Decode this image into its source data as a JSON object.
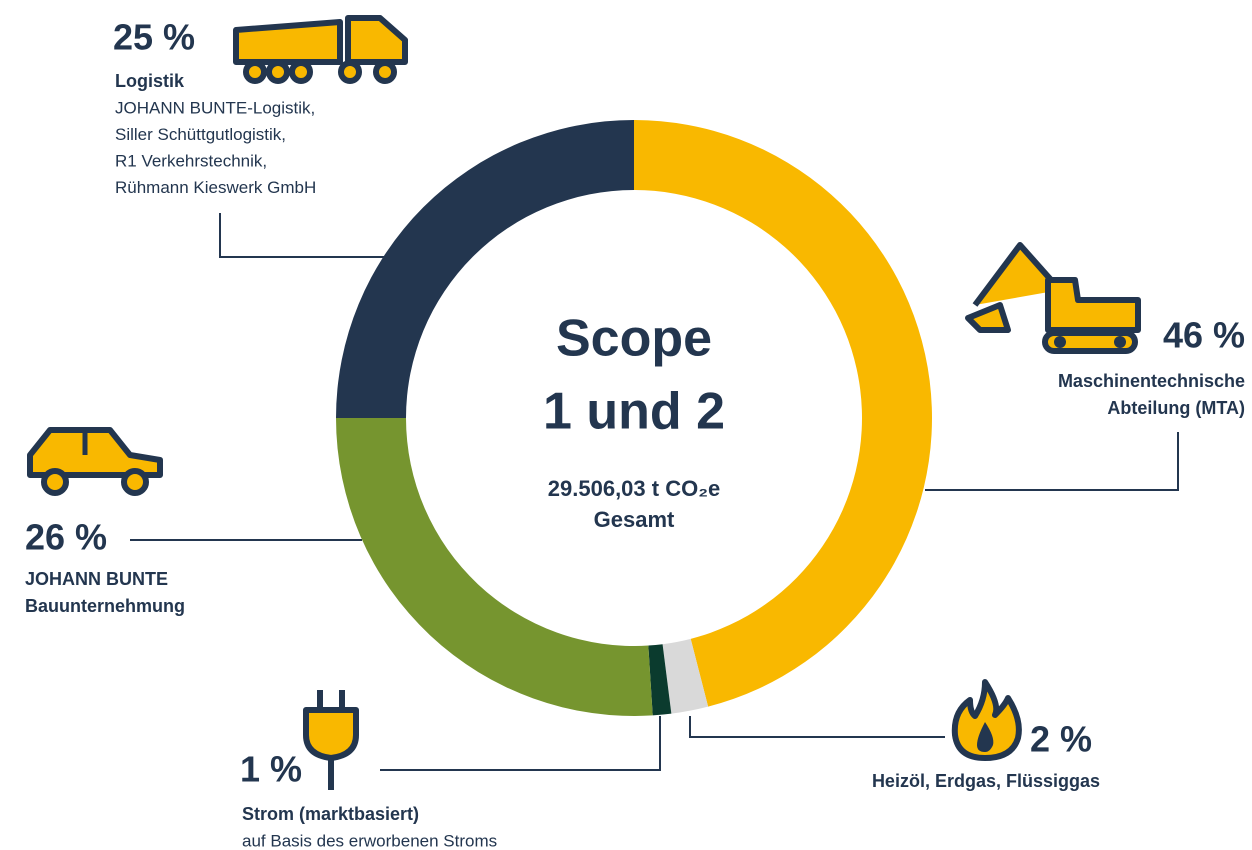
{
  "chart_data": {
    "type": "donut",
    "title": "Scope 1 und 2",
    "subtitle": "29.506,03 t CO₂e",
    "subtitle_note": "Gesamt",
    "categories": [
      "Maschinentechnische\nAbteilung (MTA)",
      "Heizöl, Erdgas, Flüssiggas",
      "Strom (marktbasiert)",
      "JOHANN BUNTE\nBauunternehmung",
      "Logistik"
    ],
    "values": [
      46,
      2,
      1,
      26,
      25
    ],
    "value_labels": [
      "46 %",
      "2 %",
      "1 %",
      "26 %",
      "25 %"
    ],
    "colors": [
      "#f9b800",
      "#d9d9d9",
      "#0b3b2e",
      "#76952f",
      "#23364f"
    ],
    "descriptions": [
      null,
      null,
      [
        "auf Basis des erworbenen Stroms"
      ],
      null,
      [
        "JOHANN BUNTE-Logistik,",
        "Siller Schüttgutlogistik,",
        "R1 Verkehrstechnik,",
        "Rühmann Kieswerk GmbH"
      ]
    ]
  }
}
